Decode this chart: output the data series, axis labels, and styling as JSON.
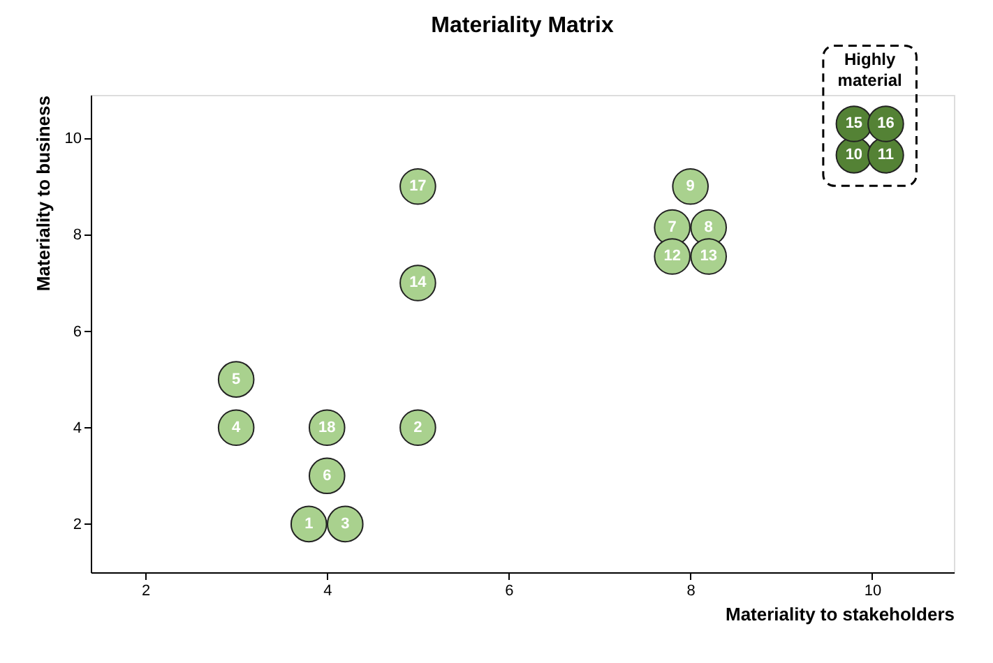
{
  "chart_data": {
    "type": "scatter",
    "title": "Materiality Matrix",
    "xlabel": "Materiality to stakeholders",
    "ylabel": "Materiality to business",
    "xlim": [
      1.4,
      10.9
    ],
    "ylim": [
      1,
      10.9
    ],
    "xticks": [
      2,
      4,
      6,
      8,
      10
    ],
    "yticks": [
      2,
      4,
      6,
      8,
      10
    ],
    "grid": false,
    "marker": "circle",
    "series": [
      {
        "color": "#a9d18e",
        "x": [
          3.8,
          5,
          4.2,
          3,
          3,
          4,
          7.8,
          8.2,
          8,
          7.8,
          8.2,
          5,
          5,
          4
        ],
        "values": [
          2,
          4,
          2,
          4,
          5,
          3,
          8.15,
          8.15,
          9,
          7.55,
          7.55,
          7,
          9,
          4
        ]
      },
      {
        "color": "#548235",
        "x": [
          9.8,
          10.15,
          9.8,
          10.15
        ],
        "values": [
          9.65,
          9.65,
          10.3,
          10.3
        ]
      }
    ],
    "annotations": [
      {
        "text": "1",
        "x": 3.8,
        "y": 2
      },
      {
        "text": "2",
        "x": 5,
        "y": 4
      },
      {
        "text": "3",
        "x": 4.2,
        "y": 2
      },
      {
        "text": "4",
        "x": 3,
        "y": 4
      },
      {
        "text": "5",
        "x": 3,
        "y": 5
      },
      {
        "text": "6",
        "x": 4,
        "y": 3
      },
      {
        "text": "7",
        "x": 7.8,
        "y": 8.15
      },
      {
        "text": "8",
        "x": 8.2,
        "y": 8.15
      },
      {
        "text": "9",
        "x": 8,
        "y": 9
      },
      {
        "text": "10",
        "x": 9.8,
        "y": 9.65
      },
      {
        "text": "11",
        "x": 10.15,
        "y": 9.65
      },
      {
        "text": "12",
        "x": 7.8,
        "y": 7.55
      },
      {
        "text": "13",
        "x": 8.2,
        "y": 7.55
      },
      {
        "text": "14",
        "x": 5,
        "y": 7
      },
      {
        "text": "15",
        "x": 9.8,
        "y": 10.3
      },
      {
        "text": "16",
        "x": 10.15,
        "y": 10.3
      },
      {
        "text": "17",
        "x": 5,
        "y": 9
      },
      {
        "text": "18",
        "x": 4,
        "y": 4
      },
      "Highly material"
    ]
  }
}
